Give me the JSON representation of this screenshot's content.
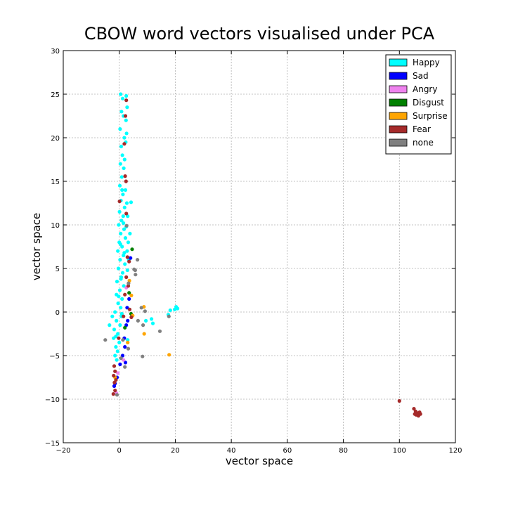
{
  "chart_data": {
    "type": "scatter",
    "title": "CBOW word vectors visualised under PCA",
    "xlabel": "vector space",
    "ylabel": "vector space",
    "xlim": [
      -20,
      120
    ],
    "ylim": [
      -15,
      30
    ],
    "xticks": [
      -20,
      0,
      20,
      40,
      60,
      80,
      100,
      120
    ],
    "yticks": [
      -15,
      -10,
      -5,
      0,
      5,
      10,
      15,
      20,
      25,
      30
    ],
    "xtick_labels": [
      "−20",
      "0",
      "20",
      "40",
      "60",
      "80",
      "100",
      "120"
    ],
    "ytick_labels": [
      "−15",
      "−10",
      "−5",
      "0",
      "5",
      "10",
      "15",
      "20",
      "25",
      "30"
    ],
    "grid": true,
    "legend_position": "top-right",
    "series": [
      {
        "name": "Happy",
        "color": "#00ffff",
        "points": [
          [
            0.5,
            25
          ],
          [
            1.2,
            24.5
          ],
          [
            0.8,
            23
          ],
          [
            1.5,
            22.5
          ],
          [
            0.3,
            21
          ],
          [
            1.8,
            20
          ],
          [
            0.7,
            19
          ],
          [
            1.1,
            18
          ],
          [
            0.4,
            17
          ],
          [
            1.6,
            16.5
          ],
          [
            0.9,
            15.5
          ],
          [
            0.2,
            14.5
          ],
          [
            1.3,
            13.5
          ],
          [
            0.6,
            12.8
          ],
          [
            1.9,
            12
          ],
          [
            0.1,
            11.5
          ],
          [
            1.4,
            11
          ],
          [
            0.8,
            10.5
          ],
          [
            -0.2,
            10
          ],
          [
            1.7,
            9.5
          ],
          [
            0.5,
            9
          ],
          [
            2.2,
            8.5
          ],
          [
            0,
            8
          ],
          [
            1,
            7.5
          ],
          [
            -0.5,
            7
          ],
          [
            1.5,
            6.5
          ],
          [
            0.3,
            6
          ],
          [
            2,
            5.5
          ],
          [
            -0.3,
            5
          ],
          [
            1.2,
            4.5
          ],
          [
            0.7,
            4
          ],
          [
            -0.8,
            3.5
          ],
          [
            1.6,
            3
          ],
          [
            0.2,
            2.5
          ],
          [
            -1,
            2
          ],
          [
            1,
            1.5
          ],
          [
            -0.4,
            1
          ],
          [
            0.5,
            0.5
          ],
          [
            -1.5,
            0
          ],
          [
            0.8,
            -0.5
          ],
          [
            -1,
            -1
          ],
          [
            0.3,
            -1.5
          ],
          [
            -1.8,
            -2
          ],
          [
            -0.5,
            -2.5
          ],
          [
            -2,
            -3
          ],
          [
            0,
            -3.5
          ],
          [
            -1.2,
            -4
          ],
          [
            -0.6,
            -4.5
          ],
          [
            -1.5,
            -5
          ],
          [
            -0.9,
            -5.5
          ],
          [
            2.5,
            24.8
          ],
          [
            2.8,
            23.5
          ],
          [
            2.4,
            22
          ],
          [
            2.6,
            20.5
          ],
          [
            2.3,
            19.5
          ],
          [
            1.9,
            17.5
          ],
          [
            2.2,
            14
          ],
          [
            2.7,
            12.5
          ],
          [
            3,
            11
          ],
          [
            2.5,
            9.8
          ],
          [
            3.2,
            8
          ],
          [
            2.8,
            7
          ],
          [
            3.4,
            6
          ],
          [
            2.9,
            4.8
          ],
          [
            4.2,
            12.6
          ],
          [
            3.8,
            9
          ],
          [
            -3.5,
            -1.5
          ],
          [
            -2.5,
            -0.5
          ],
          [
            3,
            -3.2
          ],
          [
            9.5,
            -1
          ],
          [
            11.5,
            -0.8
          ],
          [
            12,
            -1.3
          ],
          [
            17.5,
            -0.3
          ],
          [
            18.2,
            0.2
          ],
          [
            20.3,
            0.6
          ],
          [
            20.8,
            0.4
          ],
          [
            19.8,
            0.3
          ],
          [
            1,
            14
          ],
          [
            1.5,
            10.2
          ],
          [
            0.4,
            7.8
          ],
          [
            1.8,
            6.8
          ],
          [
            0.6,
            3.8
          ],
          [
            -0.2,
            1.8
          ],
          [
            0.9,
            -0.2
          ],
          [
            -1.2,
            -2.8
          ]
        ]
      },
      {
        "name": "Sad",
        "color": "#0000ff",
        "points": [
          [
            -1.8,
            -8.5
          ],
          [
            -1.5,
            -8.2
          ],
          [
            -0.8,
            -7.5
          ],
          [
            0.3,
            -6
          ],
          [
            1.2,
            -5
          ],
          [
            2,
            -4
          ],
          [
            1.8,
            -3
          ],
          [
            2.5,
            -1.5
          ],
          [
            3,
            -1
          ],
          [
            2.8,
            0.5
          ],
          [
            3.5,
            1.5
          ],
          [
            4,
            6.2
          ],
          [
            2.2,
            -5.8
          ]
        ]
      },
      {
        "name": "Angry",
        "color": "#ee82ee",
        "points": [
          [
            -1,
            -9.3
          ],
          [
            -0.5,
            -7
          ],
          [
            1.5,
            -5.5
          ],
          [
            2.5,
            2.8
          ]
        ]
      },
      {
        "name": "Disgust",
        "color": "#008000",
        "points": [
          [
            4.6,
            7.2
          ],
          [
            3.5,
            2.2
          ],
          [
            2,
            -1.8
          ],
          [
            4.2,
            -0.2
          ]
        ]
      },
      {
        "name": "Surprise",
        "color": "#ffa500",
        "points": [
          [
            17.8,
            -4.9
          ],
          [
            8.8,
            0.6
          ],
          [
            8.9,
            -2.5
          ],
          [
            4.3,
            1.9
          ],
          [
            4.8,
            -0.4
          ],
          [
            3.6,
            3.6
          ],
          [
            -1.5,
            -7.5
          ],
          [
            3,
            -3.5
          ]
        ]
      },
      {
        "name": "Fear",
        "color": "#a52a2a",
        "points": [
          [
            2.5,
            24.3
          ],
          [
            2.2,
            22.5
          ],
          [
            1.8,
            19.3
          ],
          [
            2.1,
            15.6
          ],
          [
            2.4,
            15
          ],
          [
            0.1,
            12.7
          ],
          [
            2.5,
            11.3
          ],
          [
            2.9,
            6.3
          ],
          [
            3.5,
            5.8
          ],
          [
            2.5,
            4
          ],
          [
            3.2,
            3
          ],
          [
            2,
            2
          ],
          [
            3.7,
            0.3
          ],
          [
            1.5,
            -0.5
          ],
          [
            4.3,
            -0.6
          ],
          [
            -0.2,
            -3
          ],
          [
            -1.8,
            -6.2
          ],
          [
            -1.5,
            -6.8
          ],
          [
            -2,
            -7.3
          ],
          [
            -1.2,
            -7.8
          ],
          [
            -1.7,
            -8.1
          ],
          [
            -2.1,
            -9.4
          ],
          [
            -1.5,
            -9
          ],
          [
            100,
            -10.2
          ],
          [
            105.2,
            -11.1
          ],
          [
            105.8,
            -11.4
          ],
          [
            106.5,
            -11.6
          ],
          [
            107.2,
            -11.5
          ],
          [
            106,
            -11.8
          ],
          [
            106.8,
            -11.9
          ],
          [
            105.5,
            -11.7
          ],
          [
            107.5,
            -11.7
          ]
        ]
      },
      {
        "name": "none",
        "color": "#808080",
        "points": [
          [
            -5,
            -3.2
          ],
          [
            -0.8,
            -9.5
          ],
          [
            3.2,
            -4.2
          ],
          [
            8.3,
            -5.1
          ],
          [
            8.5,
            -1.5
          ],
          [
            6.7,
            -1
          ],
          [
            5.7,
            4.8
          ],
          [
            5.8,
            4.3
          ],
          [
            6.5,
            6
          ],
          [
            5.3,
            4.9
          ],
          [
            7.9,
            0.5
          ],
          [
            9.2,
            0.1
          ],
          [
            14.5,
            -2.2
          ],
          [
            17.7,
            -0.5
          ],
          [
            2.6,
            9.9
          ],
          [
            3.3,
            3.3
          ],
          [
            0.6,
            -5.3
          ],
          [
            2,
            -6.3
          ],
          [
            1.3,
            -3.2
          ]
        ]
      }
    ]
  }
}
